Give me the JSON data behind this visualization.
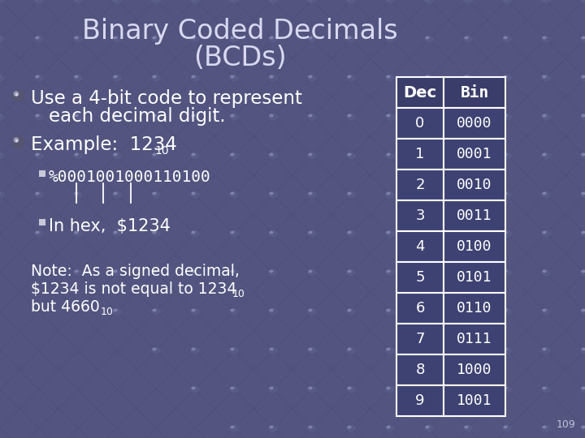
{
  "title_line1": "Binary Coded Decimals",
  "title_line2": "(BCDs)",
  "title_fontsize": 24,
  "title_color": "#d8d8f0",
  "background_color": "#535580",
  "text_color": "#FFFFFF",
  "bullet1_line1": "Use a 4-bit code to represent",
  "bullet1_line2": "each decimal digit.",
  "bullet2": "Example:  1234",
  "bullet2_sub": "10",
  "sub_bullet1": "%0001001000110100",
  "sub_bullet2": "In hex,  $1234",
  "note_line1": "Note:  As a signed decimal,",
  "note_line2": "$1234 is not equal to 1234",
  "note_line2_sub": "10",
  "note_line3": "but 4660",
  "note_line3_sub": "10",
  "table_dec": [
    "Dec",
    "0",
    "1",
    "2",
    "3",
    "4",
    "5",
    "6",
    "7",
    "8",
    "9"
  ],
  "table_bin": [
    "Bin",
    "0000",
    "0001",
    "0010",
    "0011",
    "0100",
    "0101",
    "0110",
    "0111",
    "1000",
    "1001"
  ],
  "table_header_bg": "#3a3d6a",
  "table_cell_bg": "#3e4272",
  "table_border_color": "#FFFFFF",
  "slide_number": "109",
  "grid_color": "#4a4e7a",
  "node_color": "#5a5e8a"
}
